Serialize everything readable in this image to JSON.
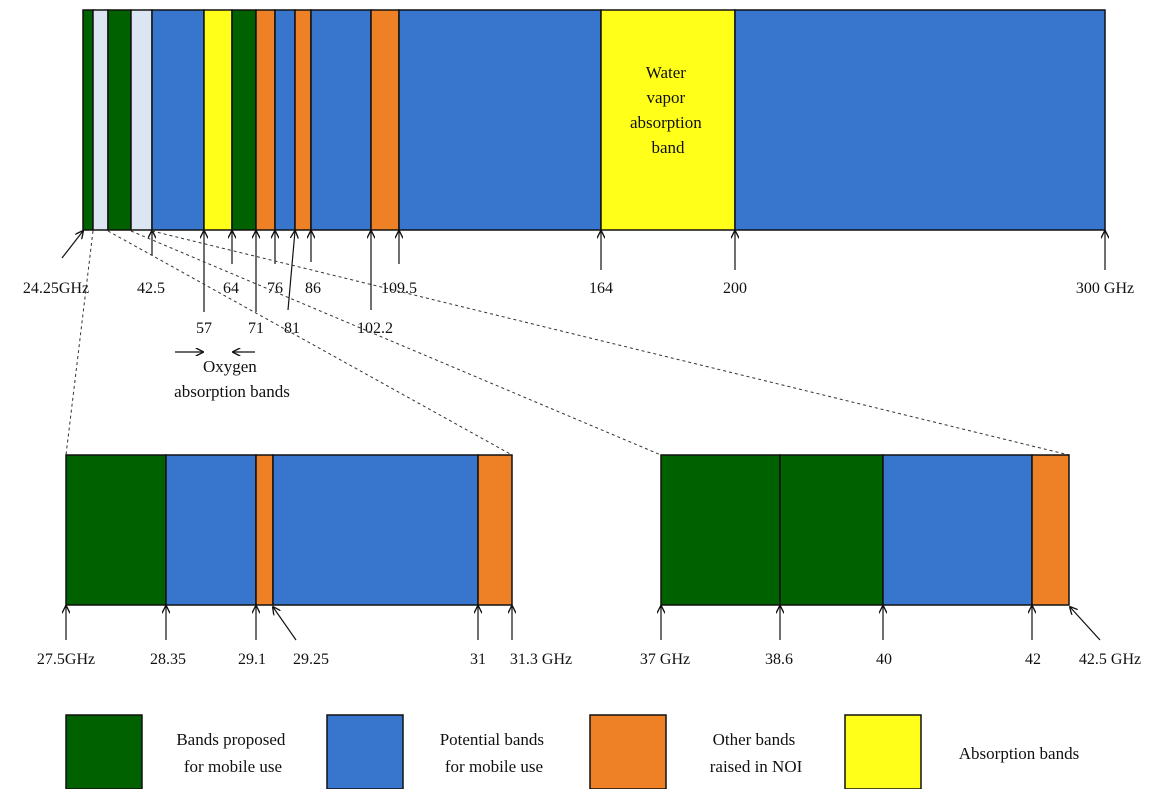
{
  "colors": {
    "proposed": "#006100",
    "potential": "#3776cc",
    "other": "#ee8126",
    "absorption": "#ffff1a",
    "light": "#dce6f2"
  },
  "top_bar": {
    "segments": [
      {
        "type": "proposed",
        "from": "24.25",
        "to": "24.45"
      },
      {
        "type": "light",
        "from": "24.45",
        "to": "27.5"
      },
      {
        "type": "proposed",
        "from": "27.5",
        "to": "28.35"
      },
      {
        "type": "light",
        "from": "28.35",
        "to": "37"
      },
      {
        "type": "potential",
        "from": "37",
        "to": "57"
      },
      {
        "type": "absorption",
        "from": "57",
        "to": "64"
      },
      {
        "type": "proposed",
        "from": "64",
        "to": "71"
      },
      {
        "type": "other",
        "from": "71",
        "to": "76"
      },
      {
        "type": "potential",
        "from": "76",
        "to": "81"
      },
      {
        "type": "other",
        "from": "81",
        "to": "86"
      },
      {
        "type": "potential",
        "from": "86",
        "to": "102.2"
      },
      {
        "type": "other",
        "from": "102.2",
        "to": "109.5"
      },
      {
        "type": "potential",
        "from": "109.5",
        "to": "164"
      },
      {
        "type": "absorption",
        "from": "164",
        "to": "200"
      },
      {
        "type": "potential",
        "from": "200",
        "to": "300"
      }
    ],
    "water_label": [
      "Water",
      "vapor",
      "absorption",
      "band"
    ],
    "ticks_upper": [
      "24.25GHz",
      "42.5",
      "64",
      "76",
      "86",
      "109.5",
      "164",
      "200",
      "300 GHz"
    ],
    "ticks_lower": [
      "57",
      "71",
      "81",
      "102.2"
    ],
    "oxygen_label": [
      "Oxygen",
      "absorption bands"
    ]
  },
  "zoom_left": {
    "segments": [
      {
        "type": "proposed",
        "from": "27.5",
        "to": "28.35"
      },
      {
        "type": "potential",
        "from": "28.35",
        "to": "29.1"
      },
      {
        "type": "other",
        "from": "29.1",
        "to": "29.25"
      },
      {
        "type": "potential",
        "from": "29.25",
        "to": "31"
      },
      {
        "type": "other",
        "from": "31",
        "to": "31.3"
      }
    ],
    "ticks": [
      "27.5GHz",
      "28.35",
      "29.1",
      "29.25",
      "31",
      "31.3 GHz"
    ]
  },
  "zoom_right": {
    "segments": [
      {
        "type": "proposed",
        "from": "37",
        "to": "38.6"
      },
      {
        "type": "proposed",
        "from": "38.6",
        "to": "40"
      },
      {
        "type": "potential",
        "from": "40",
        "to": "42"
      },
      {
        "type": "other",
        "from": "42",
        "to": "42.5"
      }
    ],
    "ticks": [
      "37 GHz",
      "38.6",
      "40",
      "42",
      "42.5 GHz"
    ]
  },
  "legend": [
    {
      "type": "proposed",
      "lines": [
        "Bands proposed",
        "for mobile use"
      ]
    },
    {
      "type": "potential",
      "lines": [
        "Potential bands",
        "for mobile use"
      ]
    },
    {
      "type": "other",
      "lines": [
        "Other bands",
        "raised in NOI"
      ]
    },
    {
      "type": "absorption",
      "lines": [
        "Absorption bands"
      ]
    }
  ]
}
